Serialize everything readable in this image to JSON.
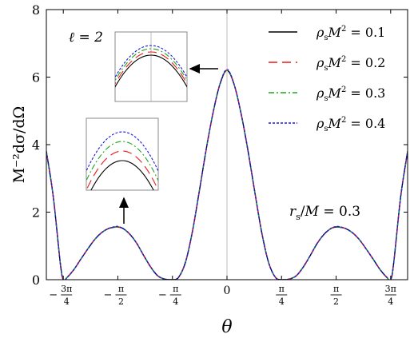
{
  "chart_data": {
    "type": "line",
    "xlabel": "θ",
    "ylabel": "M⁻²dσ/dΩ",
    "xlim": [
      -2.6,
      2.6
    ],
    "ylim": [
      0,
      8
    ],
    "grid": false,
    "legend_position": "top-right",
    "x_ticks": [
      {
        "x": -2.356,
        "num": "3π",
        "den": "4",
        "sign": "−"
      },
      {
        "x": -1.571,
        "num": "π",
        "den": "2",
        "sign": "−"
      },
      {
        "x": -0.785,
        "num": "π",
        "den": "4",
        "sign": "−"
      },
      {
        "x": 0,
        "label": "0"
      },
      {
        "x": 0.785,
        "num": "π",
        "den": "4",
        "sign": ""
      },
      {
        "x": 1.571,
        "num": "π",
        "den": "2",
        "sign": ""
      },
      {
        "x": 2.356,
        "num": "3π",
        "den": "4",
        "sign": ""
      }
    ],
    "y_ticks": [
      0,
      2,
      4,
      6,
      8
    ],
    "annotations": {
      "ell": "ℓ = 2",
      "rs": "r_s/M = 0.3"
    },
    "x": [
      -2.6,
      -2.5,
      -2.4,
      -2.356,
      -2.3,
      -2.2,
      -2.1,
      -2.0,
      -1.9,
      -1.8,
      -1.7,
      -1.6,
      -1.571,
      -1.5,
      -1.4,
      -1.3,
      -1.2,
      -1.1,
      -1.0,
      -0.9,
      -0.8,
      -0.785,
      -0.7,
      -0.6,
      -0.5,
      -0.4,
      -0.3,
      -0.2,
      -0.1,
      0.0,
      0.1,
      0.2,
      0.3,
      0.4,
      0.5,
      0.6,
      0.7,
      0.785,
      0.8,
      0.9,
      1.0,
      1.1,
      1.2,
      1.3,
      1.4,
      1.5,
      1.571,
      1.6,
      1.7,
      1.8,
      1.9,
      2.0,
      2.1,
      2.2,
      2.3,
      2.356,
      2.4,
      2.5,
      2.6
    ],
    "series": [
      {
        "name": "ρ_s M² = 0.1",
        "color": "#000000",
        "dash": "none",
        "values": [
          3.8,
          2.45,
          0.5,
          0.0,
          0.07,
          0.31,
          0.62,
          0.92,
          1.2,
          1.4,
          1.52,
          1.56,
          1.56,
          1.52,
          1.35,
          1.08,
          0.72,
          0.38,
          0.12,
          0.02,
          0.0,
          0.0,
          0.06,
          0.5,
          1.4,
          2.6,
          3.85,
          4.95,
          5.8,
          6.2,
          5.8,
          4.95,
          3.85,
          2.6,
          1.4,
          0.5,
          0.06,
          0.0,
          0.0,
          0.02,
          0.12,
          0.38,
          0.72,
          1.08,
          1.35,
          1.52,
          1.56,
          1.56,
          1.52,
          1.4,
          1.2,
          0.92,
          0.62,
          0.31,
          0.07,
          0.0,
          0.5,
          2.45,
          3.8
        ]
      },
      {
        "name": "ρ_s M² = 0.2",
        "color": "#e8191c",
        "dash": "11 6",
        "values": [
          3.8,
          2.45,
          0.5,
          0.0,
          0.07,
          0.31,
          0.62,
          0.92,
          1.2,
          1.4,
          1.52,
          1.565,
          1.565,
          1.52,
          1.35,
          1.08,
          0.72,
          0.38,
          0.12,
          0.02,
          0.0,
          0.0,
          0.06,
          0.5,
          1.4,
          2.6,
          3.85,
          4.95,
          5.8,
          6.21,
          5.8,
          4.95,
          3.85,
          2.6,
          1.4,
          0.5,
          0.06,
          0.0,
          0.0,
          0.02,
          0.12,
          0.38,
          0.72,
          1.08,
          1.35,
          1.52,
          1.565,
          1.565,
          1.52,
          1.4,
          1.2,
          0.92,
          0.62,
          0.31,
          0.07,
          0.0,
          0.5,
          2.45,
          3.8
        ]
      },
      {
        "name": "ρ_s M² = 0.3",
        "color": "#1fa51f",
        "dash": "7 3 2 3",
        "values": [
          3.8,
          2.45,
          0.5,
          0.0,
          0.07,
          0.31,
          0.62,
          0.92,
          1.2,
          1.4,
          1.52,
          1.57,
          1.57,
          1.52,
          1.35,
          1.08,
          0.72,
          0.38,
          0.12,
          0.02,
          0.0,
          0.0,
          0.06,
          0.5,
          1.4,
          2.6,
          3.85,
          4.95,
          5.8,
          6.22,
          5.8,
          4.95,
          3.85,
          2.6,
          1.4,
          0.5,
          0.06,
          0.0,
          0.0,
          0.02,
          0.12,
          0.38,
          0.72,
          1.08,
          1.35,
          1.52,
          1.57,
          1.57,
          1.52,
          1.4,
          1.2,
          0.92,
          0.62,
          0.31,
          0.07,
          0.0,
          0.5,
          2.45,
          3.8
        ]
      },
      {
        "name": "ρ_s M² = 0.4",
        "color": "#1a1adb",
        "dash": "3 2",
        "values": [
          3.8,
          2.45,
          0.5,
          0.0,
          0.07,
          0.31,
          0.62,
          0.92,
          1.2,
          1.4,
          1.52,
          1.575,
          1.575,
          1.52,
          1.35,
          1.08,
          0.72,
          0.38,
          0.12,
          0.02,
          0.0,
          0.0,
          0.06,
          0.5,
          1.4,
          2.6,
          3.85,
          4.95,
          5.8,
          6.23,
          5.8,
          4.95,
          3.85,
          2.6,
          1.4,
          0.5,
          0.06,
          0.0,
          0.0,
          0.02,
          0.12,
          0.38,
          0.72,
          1.08,
          1.35,
          1.52,
          1.575,
          1.575,
          1.52,
          1.4,
          1.2,
          0.92,
          0.62,
          0.31,
          0.07,
          0.0,
          0.5,
          2.45,
          3.8
        ]
      }
    ]
  }
}
